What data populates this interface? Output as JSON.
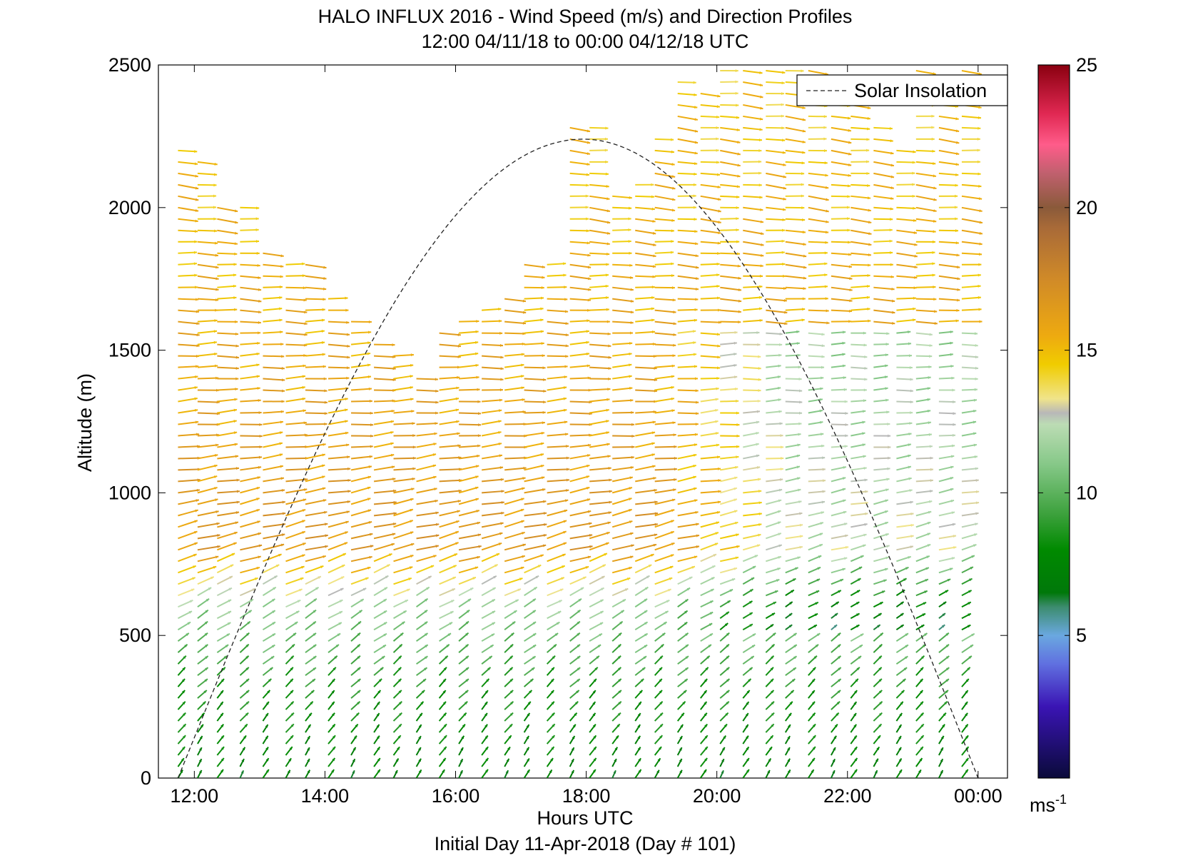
{
  "chart_data": {
    "type": "quiver",
    "title": "HALO INFLUX 2016 - Wind Speed (m/s) and Direction Profiles",
    "subtitle": "12:00 04/11/18 to 00:00 04/12/18  UTC",
    "xlabel": "Hours UTC",
    "ylabel": "Altitude (m)",
    "footer": "Initial Day 11-Apr-2018 (Day # 101)",
    "xlim": [
      11.45,
      24.45
    ],
    "ylim": [
      0,
      2500
    ],
    "xticks": [
      12,
      14,
      16,
      18,
      20,
      22,
      24
    ],
    "xtick_labels": [
      "12:00",
      "14:00",
      "16:00",
      "18:00",
      "20:00",
      "22:00",
      "00:00"
    ],
    "yticks": [
      0,
      500,
      1000,
      1500,
      2000,
      2500
    ],
    "ytick_labels": [
      "0",
      "500",
      "1000",
      "1500",
      "2000",
      "2500"
    ],
    "legend": {
      "label": "Solar Insolation",
      "placement": "top-right",
      "line_style": "dashed"
    },
    "solar_insolation": {
      "start_hour": 11.75,
      "peak_hour": 17.95,
      "end_hour": 24.0,
      "peak_altitude": 2240
    },
    "colorbar": {
      "label": "ms",
      "label_exponent": "-1",
      "range": [
        0,
        25
      ],
      "ticks": [
        5,
        10,
        15,
        20,
        25
      ],
      "tick_labels": [
        "5",
        "10",
        "15",
        "20",
        "25"
      ],
      "stops": [
        {
          "v": 0,
          "c": "#0a0a3a"
        },
        {
          "v": 2.5,
          "c": "#3a14b4"
        },
        {
          "v": 4,
          "c": "#6070e0"
        },
        {
          "v": 5,
          "c": "#6aa8e0"
        },
        {
          "v": 6,
          "c": "#3c8c6e"
        },
        {
          "v": 6.5,
          "c": "#00780a"
        },
        {
          "v": 8,
          "c": "#008a00"
        },
        {
          "v": 9.2,
          "c": "#3aa03a"
        },
        {
          "v": 11,
          "c": "#86c888"
        },
        {
          "v": 12.4,
          "c": "#bcdcb4"
        },
        {
          "v": 12.8,
          "c": "#b8b8b8"
        },
        {
          "v": 13.3,
          "c": "#f0e48a"
        },
        {
          "v": 14.5,
          "c": "#f0cc00"
        },
        {
          "v": 15.5,
          "c": "#eeaa10"
        },
        {
          "v": 17.5,
          "c": "#d08a28"
        },
        {
          "v": 19.3,
          "c": "#a86a38"
        },
        {
          "v": 20,
          "c": "#8a5a3a"
        },
        {
          "v": 21.2,
          "c": "#c0606e"
        },
        {
          "v": 22.2,
          "c": "#ff5c8a"
        },
        {
          "v": 23.3,
          "c": "#e02852"
        },
        {
          "v": 25,
          "c": "#8a0010"
        }
      ]
    },
    "profiles": {
      "times": [
        11.75,
        12.05,
        12.35,
        12.7,
        13.05,
        13.4,
        13.7,
        14.05,
        14.4,
        14.75,
        15.05,
        15.4,
        15.75,
        16.05,
        16.4,
        16.75,
        17.05,
        17.4,
        17.75,
        18.05,
        18.4,
        18.75,
        19.05,
        19.4,
        19.75,
        20.05,
        20.4,
        20.75,
        21.05,
        21.4,
        21.75,
        22.05,
        22.4,
        22.75,
        23.05,
        23.4,
        23.75
      ],
      "max_altitude": [
        2200,
        2180,
        2000,
        2000,
        1870,
        1830,
        1800,
        1700,
        1620,
        1550,
        1500,
        1400,
        1580,
        1620,
        1650,
        1700,
        1800,
        1800,
        2290,
        2290,
        2050,
        2100,
        2250,
        2460,
        2400,
        2500,
        2500,
        2500,
        2500,
        2500,
        2450,
        2400,
        2300,
        2200,
        2500,
        2400,
        2500
      ],
      "altitude_step": 40,
      "regimes": [
        {
          "altitude": 0,
          "speed": 7.2,
          "direction_from": 210
        },
        {
          "altitude": 300,
          "speed": 8.5,
          "direction_from": 225
        },
        {
          "altitude": 600,
          "speed": 11.5,
          "direction_from": 240
        },
        {
          "altitude": 800,
          "speed": 16.5,
          "direction_from": 255
        },
        {
          "altitude": 1200,
          "speed": 16.0,
          "direction_from": 265
        },
        {
          "altitude": 1600,
          "speed": 15.5,
          "direction_from": 270
        },
        {
          "altitude": 2000,
          "speed": 15.0,
          "direction_from": 275
        },
        {
          "altitude": 2500,
          "speed": 14.5,
          "direction_from": 275
        }
      ]
    }
  }
}
